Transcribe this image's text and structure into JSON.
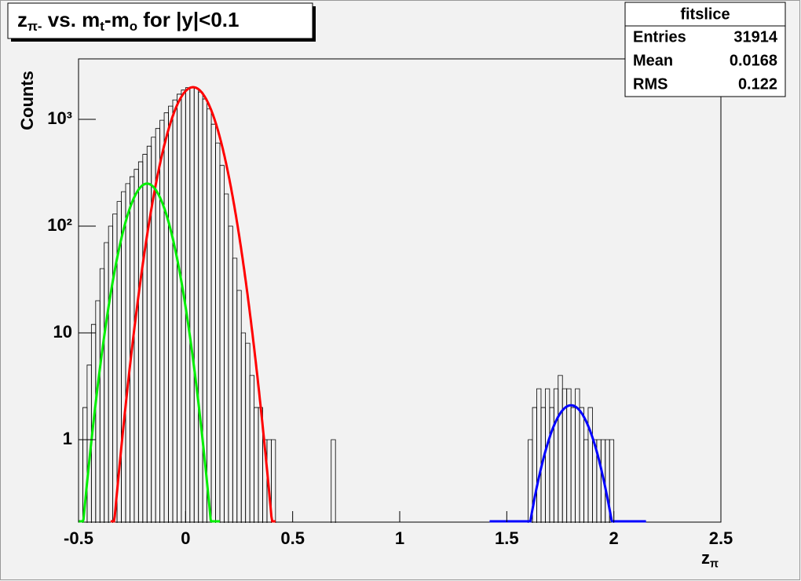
{
  "chart_data": {
    "type": "histogram",
    "title": [
      {
        "text": "z"
      },
      {
        "text": "π-",
        "sub": true
      },
      {
        "text": " vs. m"
      },
      {
        "text": "t",
        "sub": true
      },
      {
        "text": "-m"
      },
      {
        "text": "o",
        "sub": true
      },
      {
        "text": " for |y|<0.1"
      }
    ],
    "x_label": [
      {
        "text": "z"
      },
      {
        "text": "π",
        "sub": true
      }
    ],
    "y_label": "Counts",
    "log_y": true,
    "color": "#000000",
    "xlim": [
      -0.5,
      2.5
    ],
    "ylim": [
      0.169,
      3680
    ],
    "xticks": [
      -0.5,
      0,
      0.5,
      1,
      1.5,
      2,
      2.5
    ],
    "yticks": [
      1,
      10,
      {
        "value": 100,
        "label": "10²"
      },
      {
        "value": 1000,
        "label": "10³"
      }
    ],
    "bins": [
      -0.5,
      -0.48,
      -0.46,
      -0.44,
      -0.42,
      -0.4,
      -0.38,
      -0.36,
      -0.34,
      -0.32,
      -0.3,
      -0.28,
      -0.26,
      -0.24,
      -0.22,
      -0.2,
      -0.18,
      -0.16,
      -0.14,
      -0.12,
      -0.1,
      -0.08,
      -0.06,
      -0.04,
      -0.02,
      0,
      0.02,
      0.04,
      0.06,
      0.08,
      0.1,
      0.12,
      0.14,
      0.16,
      0.18,
      0.2,
      0.22,
      0.24,
      0.26,
      0.28,
      0.3,
      0.32,
      0.34,
      0.36,
      0.38,
      0.4,
      0.42,
      0.44,
      0.46,
      0.48,
      0.5,
      0.52,
      0.54,
      0.56,
      0.58,
      0.6,
      0.62,
      0.64,
      0.66,
      0.68,
      0.7,
      0.72,
      0.74,
      0.76,
      0.78,
      0.8,
      0.82,
      0.84,
      0.86,
      0.88,
      0.9,
      0.92,
      0.94,
      0.96,
      0.98,
      1,
      1.02,
      1.04,
      1.06,
      1.08,
      1.1,
      1.12,
      1.14,
      1.16,
      1.18,
      1.2,
      1.22,
      1.24,
      1.26,
      1.28,
      1.3,
      1.32,
      1.34,
      1.36,
      1.38,
      1.4,
      1.42,
      1.44,
      1.46,
      1.48,
      1.5,
      1.52,
      1.54,
      1.56,
      1.58,
      1.6,
      1.62,
      1.64,
      1.66,
      1.68,
      1.7,
      1.72,
      1.74,
      1.76,
      1.78,
      1.8,
      1.82,
      1.84,
      1.86,
      1.88,
      1.9,
      1.92,
      1.94,
      1.96,
      1.98,
      2,
      2.02,
      2.04,
      2.06,
      2.08,
      2.1,
      2.12,
      2.14,
      2.16,
      2.18,
      2.2,
      2.22,
      2.24,
      2.26,
      2.28,
      2.3,
      2.32,
      2.34,
      2.36,
      2.38,
      2.4,
      2.42,
      2.44,
      2.46,
      2.48,
      2.5
    ],
    "values": [
      1,
      2,
      5,
      12,
      20,
      40,
      70,
      100,
      130,
      170,
      210,
      250,
      290,
      340,
      400,
      470,
      560,
      680,
      820,
      980,
      1150,
      1330,
      1520,
      1720,
      1880,
      1980,
      2000,
      1950,
      1800,
      1550,
      1250,
      900,
      600,
      370,
      200,
      100,
      50,
      25,
      10,
      8,
      4,
      2,
      2,
      1,
      1,
      1,
      0,
      0,
      0,
      0,
      0,
      0,
      0,
      0,
      0,
      0,
      0,
      0,
      0,
      1,
      0,
      0,
      0,
      0,
      0,
      0,
      0,
      0,
      0,
      0,
      0,
      0,
      0,
      0,
      0,
      0,
      0,
      0,
      0,
      0,
      0,
      0,
      0,
      0,
      0,
      0,
      0,
      0,
      0,
      0,
      0,
      0,
      0,
      0,
      0,
      0,
      0,
      0,
      0,
      0,
      0,
      0,
      0,
      0,
      0,
      1,
      2,
      3,
      2,
      3,
      2,
      3,
      4,
      3,
      3,
      2,
      3,
      2,
      1,
      2,
      1,
      1,
      1,
      1,
      1,
      0,
      0,
      0,
      0,
      0,
      0,
      0,
      0,
      0,
      0,
      0,
      0,
      0,
      0,
      0,
      0,
      0,
      0,
      0,
      0,
      0,
      0,
      0,
      0,
      0
    ],
    "fits": [
      {
        "color": "#ff0000",
        "amplitude": 2000,
        "mean": 0.035,
        "sigma": 0.085,
        "range": [
          -0.35,
          0.42
        ]
      },
      {
        "color": "#00ee00",
        "amplitude": 250,
        "mean": -0.18,
        "sigma": 0.078,
        "range": [
          -0.5,
          0.16
        ]
      },
      {
        "color": "#0000ff",
        "amplitude": 2.1,
        "mean": 1.8,
        "sigma": 0.085,
        "range": [
          1.42,
          2.15
        ]
      }
    ],
    "stats": {
      "name": "fitslice",
      "rows": [
        {
          "label": "Entries",
          "value": 31914
        },
        {
          "label": "Mean",
          "value": 0.0168
        },
        {
          "label": "RMS",
          "value": 0.122
        }
      ]
    }
  }
}
